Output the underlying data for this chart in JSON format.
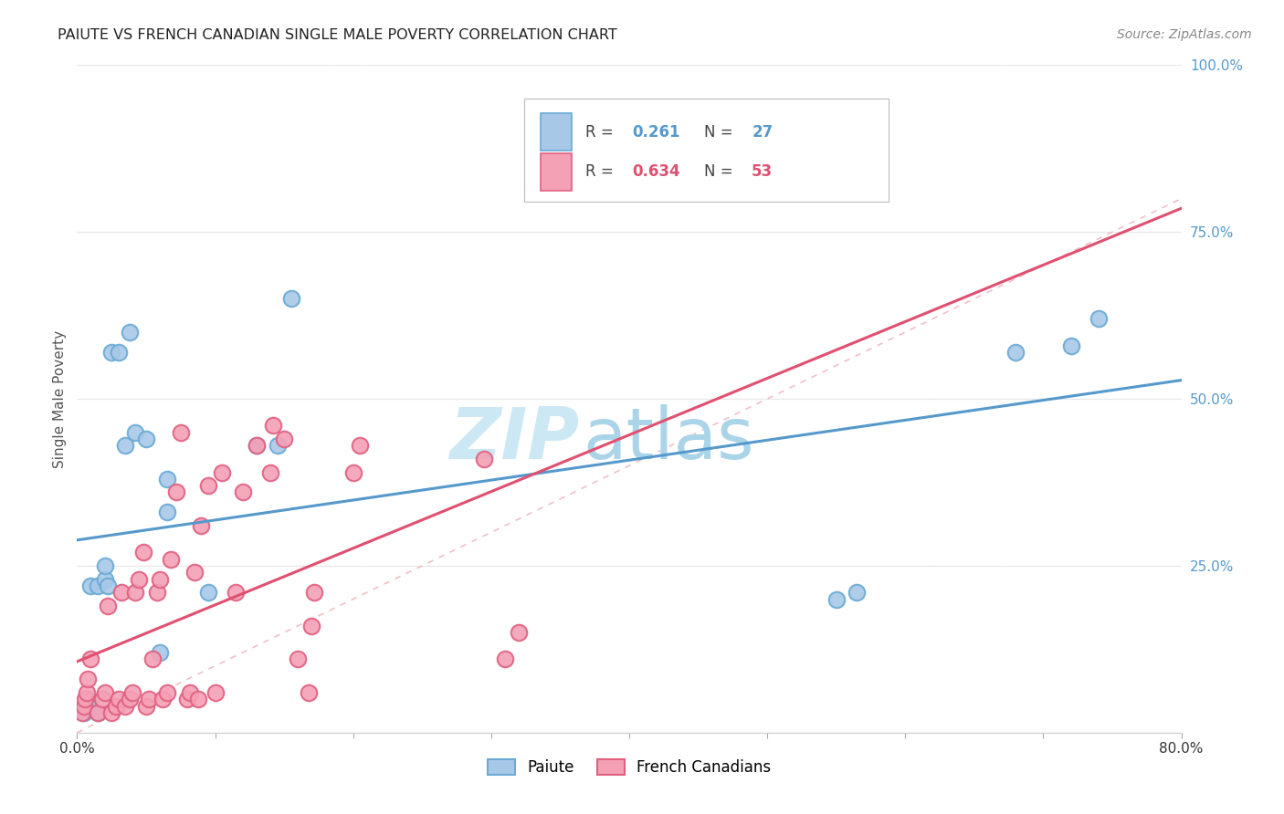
{
  "title": "PAIUTE VS FRENCH CANADIAN SINGLE MALE POVERTY CORRELATION CHART",
  "source": "Source: ZipAtlas.com",
  "ylabel": "Single Male Poverty",
  "paiute_R": 0.261,
  "paiute_N": 27,
  "french_R": 0.634,
  "french_N": 53,
  "paiute_color": "#a8c8e8",
  "french_color": "#f4a0b5",
  "paiute_edge_color": "#6aaad4",
  "french_edge_color": "#e06080",
  "paiute_line_color": "#5599cc",
  "french_line_color": "#e05070",
  "watermark_zip_color": "#cce8f4",
  "watermark_atlas_color": "#aad4e8",
  "background_color": "#ffffff",
  "paiute_x": [
    0.005,
    0.008,
    0.01,
    0.01,
    0.015,
    0.015,
    0.02,
    0.02,
    0.022,
    0.025,
    0.03,
    0.035,
    0.038,
    0.042,
    0.05,
    0.06,
    0.065,
    0.065,
    0.095,
    0.13,
    0.145,
    0.155,
    0.55,
    0.565,
    0.68,
    0.72,
    0.74
  ],
  "paiute_y": [
    0.03,
    0.05,
    0.04,
    0.22,
    0.03,
    0.22,
    0.23,
    0.25,
    0.22,
    0.57,
    0.57,
    0.43,
    0.6,
    0.45,
    0.44,
    0.12,
    0.33,
    0.38,
    0.21,
    0.43,
    0.43,
    0.65,
    0.2,
    0.21,
    0.57,
    0.58,
    0.62
  ],
  "french_x": [
    0.004,
    0.005,
    0.006,
    0.007,
    0.008,
    0.01,
    0.015,
    0.018,
    0.02,
    0.022,
    0.025,
    0.028,
    0.03,
    0.032,
    0.035,
    0.038,
    0.04,
    0.042,
    0.045,
    0.048,
    0.05,
    0.052,
    0.055,
    0.058,
    0.06,
    0.062,
    0.065,
    0.068,
    0.072,
    0.075,
    0.08,
    0.082,
    0.085,
    0.088,
    0.09,
    0.095,
    0.1,
    0.105,
    0.115,
    0.12,
    0.13,
    0.14,
    0.142,
    0.15,
    0.16,
    0.168,
    0.17,
    0.172,
    0.2,
    0.205,
    0.295,
    0.31,
    0.32
  ],
  "french_y": [
    0.03,
    0.04,
    0.05,
    0.06,
    0.08,
    0.11,
    0.03,
    0.05,
    0.06,
    0.19,
    0.03,
    0.04,
    0.05,
    0.21,
    0.04,
    0.05,
    0.06,
    0.21,
    0.23,
    0.27,
    0.04,
    0.05,
    0.11,
    0.21,
    0.23,
    0.05,
    0.06,
    0.26,
    0.36,
    0.45,
    0.05,
    0.06,
    0.24,
    0.05,
    0.31,
    0.37,
    0.06,
    0.39,
    0.21,
    0.36,
    0.43,
    0.39,
    0.46,
    0.44,
    0.11,
    0.06,
    0.16,
    0.21,
    0.39,
    0.43,
    0.41,
    0.11,
    0.15
  ],
  "diagonal_line_color": "#f0c0c8",
  "grid_color": "#e8e8e8",
  "xlim": [
    0,
    0.8
  ],
  "ylim": [
    0,
    1.0
  ],
  "x_ticks": [
    0.0,
    0.1,
    0.2,
    0.3,
    0.4,
    0.5,
    0.6,
    0.7,
    0.8
  ],
  "y_ticks": [
    0.0,
    0.25,
    0.5,
    0.75,
    1.0
  ],
  "y_tick_labels": [
    "",
    "25.0%",
    "50.0%",
    "75.0%",
    "100.0%"
  ],
  "x_tick_labels_show": [
    "0.0%",
    "80.0%"
  ],
  "tick_label_color": "#5599cc",
  "bottom_label_color": "#333333"
}
